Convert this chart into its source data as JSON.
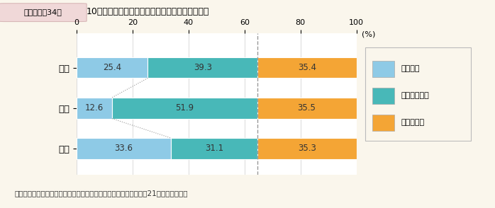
{
  "title_box_label": "第１－特－34図",
  "title_main": "10年後，今より高い職責にあると思うか（性別）",
  "categories": [
    "総数",
    "女性",
    "男性"
  ],
  "series": {
    "そう思う": [
      25.4,
      12.6,
      33.6
    ],
    "そう思わない": [
      39.3,
      51.9,
      31.1
    ],
    "分からない": [
      35.4,
      35.5,
      35.3
    ]
  },
  "colors": {
    "そう思う": "#8ecae6",
    "そう思わない": "#48b8b8",
    "分からない": "#f4a535"
  },
  "legend_labels": [
    "そう思う",
    "そう思わない",
    "分からない"
  ],
  "xlabel": "(%)",
  "xlim": [
    0,
    100
  ],
  "xticks": [
    0,
    20,
    40,
    60,
    80,
    100
  ],
  "background_color": "#faf6ec",
  "plot_bg_color": "#ffffff",
  "title_bar_color": "#f5eeee",
  "title_box_fill": "#f0d8d8",
  "title_box_edge": "#d8b8b8",
  "dashed_line_x": 64.7,
  "note": "（備考）内閣府「男女のライフスタイルに関する意識調査」（平成21年）より作成。"
}
